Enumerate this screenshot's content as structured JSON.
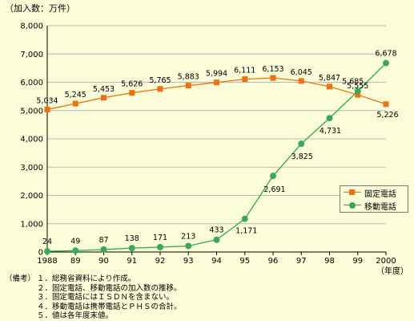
{
  "unit_label": "（加入数：万件）",
  "x_unit_label": "（年度）",
  "colors": {
    "fixed": "#f07010",
    "mobile": "#2ea84a",
    "mobile_fill": "#3aa858",
    "grid": "#b8b8b8"
  },
  "legend": {
    "fixed": "固定電話",
    "mobile": "移動電話"
  },
  "notes": {
    "head": "（備考）",
    "items": [
      "１．総務省資料により作成。",
      "２．固定電話、移動電話の加入数の推移。",
      "３．固定電話にはＩＳＤＮを含まない。",
      "４．移動電話は携帯電話とＰＨＳの合計。",
      "５．値は各年度末値。"
    ]
  },
  "chart_data": {
    "type": "line",
    "categories": [
      "1988",
      "89",
      "90",
      "91",
      "92",
      "93",
      "94",
      "95",
      "96",
      "97",
      "98",
      "99",
      "2000"
    ],
    "series": [
      {
        "name": "固定電話",
        "marker": "square",
        "values": [
          5034,
          5245,
          5453,
          5626,
          5765,
          5883,
          5994,
          6111,
          6153,
          6045,
          5847,
          5555,
          5226
        ],
        "labels": [
          "5,034",
          "5,245",
          "5,453",
          "5,626",
          "5,765",
          "5,883",
          "5,994",
          "6,111",
          "6,153",
          "6,045",
          "5,847",
          "5,555",
          "5,226"
        ]
      },
      {
        "name": "移動電話",
        "marker": "circle",
        "values": [
          24,
          49,
          87,
          138,
          171,
          213,
          433,
          1171,
          2691,
          3825,
          4731,
          5685,
          6678
        ],
        "labels": [
          "24",
          "49",
          "87",
          "138",
          "171",
          "213",
          "433",
          "1,171",
          "2,691",
          "3,825",
          "4,731",
          "5,685",
          "6,678"
        ]
      }
    ],
    "ylim": [
      0,
      8000
    ],
    "yticks": [
      0,
      1000,
      2000,
      3000,
      4000,
      5000,
      6000,
      7000,
      8000
    ],
    "ytick_labels": [
      "0",
      "1,000",
      "2,000",
      "3,000",
      "4,000",
      "5,000",
      "6,000",
      "7,000",
      "8,000"
    ],
    "grid": true,
    "legend_position": "lower-right"
  }
}
